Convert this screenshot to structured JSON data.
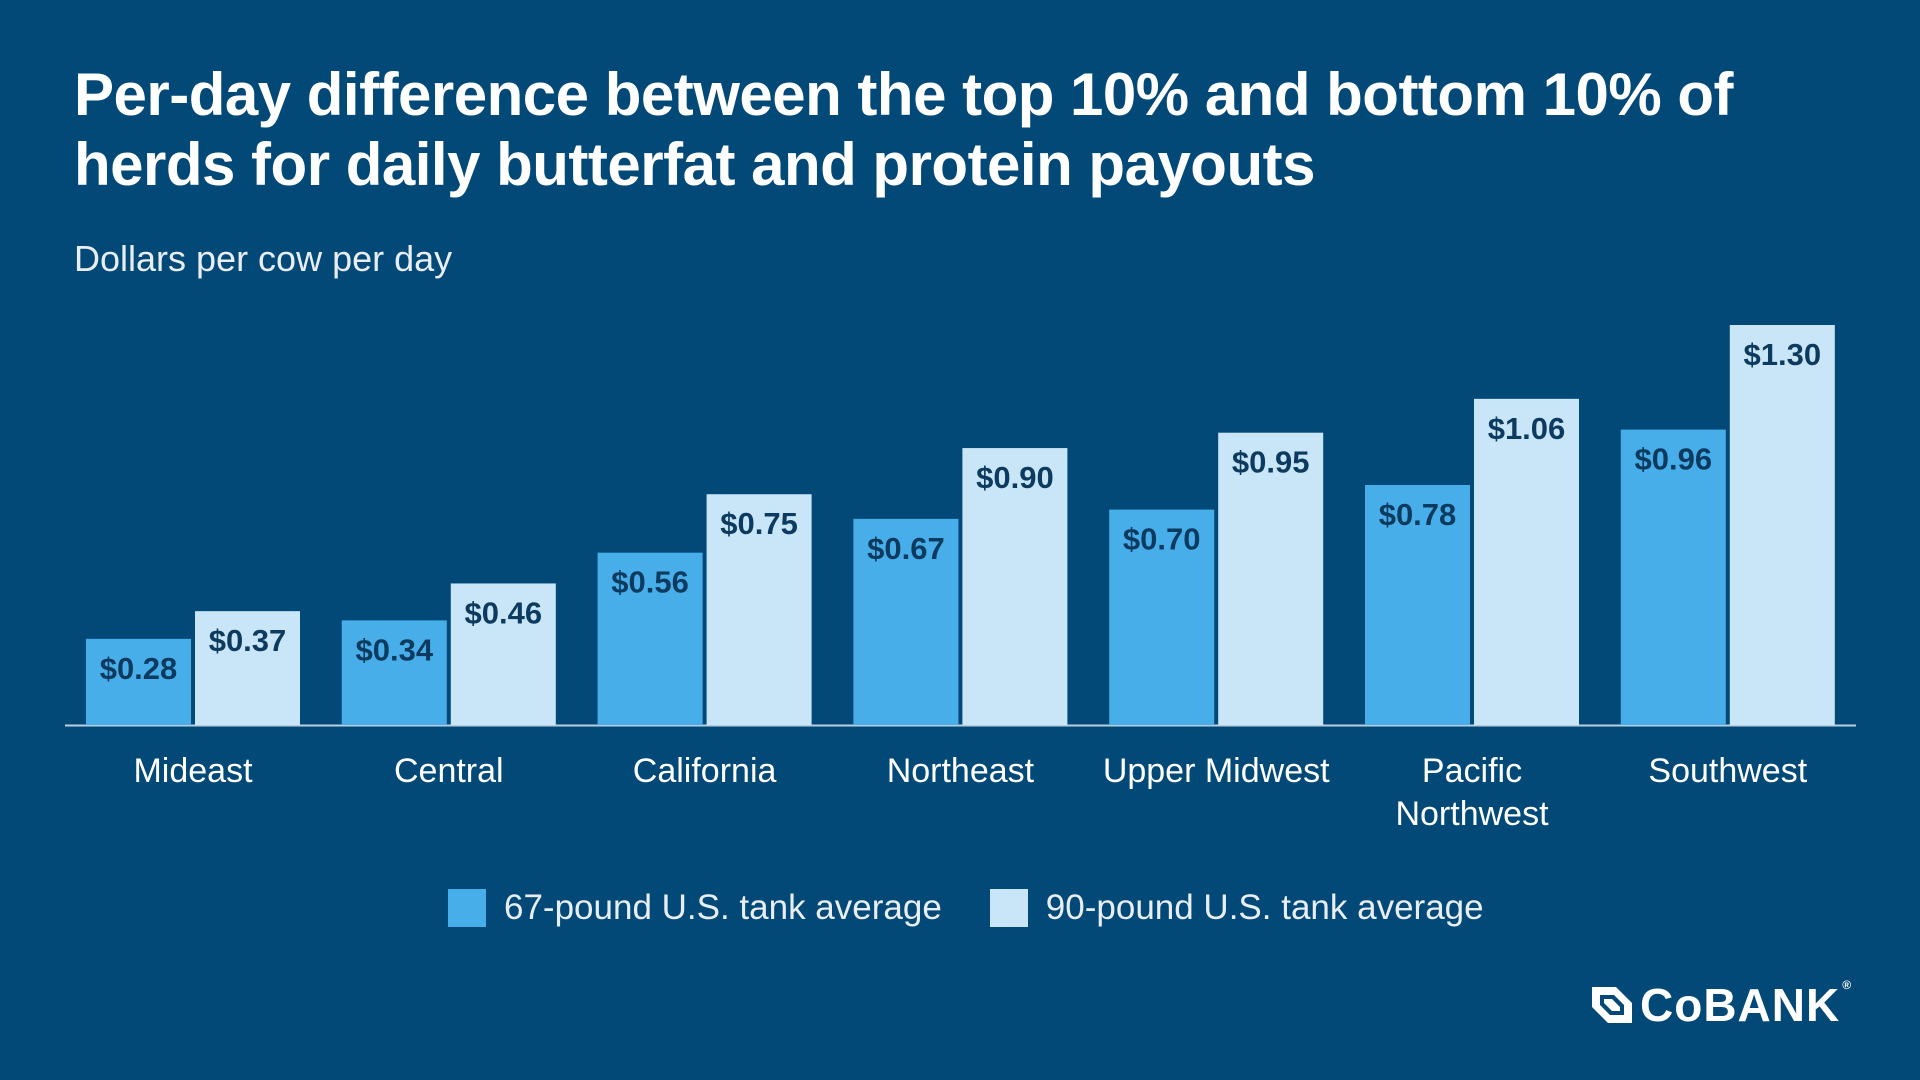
{
  "title": "Per-day difference between the top 10% and bottom 10% of herds for daily butterfat and protein payouts",
  "subtitle": "Dollars per cow per day",
  "brand": {
    "name": "CoBANK",
    "registered": "®",
    "logo_icon": "cobank-logo-icon"
  },
  "colors": {
    "background": "#034978",
    "series_67": "#47aee9",
    "series_90": "#c9e6f8",
    "value_label": "#0d3a5f",
    "axis": "#b9cfe0"
  },
  "chart_data": {
    "type": "bar",
    "categories": [
      "Mideast",
      "Central",
      "California",
      "Northeast",
      "Upper Midwest",
      "Pacific Northwest",
      "Southwest"
    ],
    "category_lines": [
      [
        "Mideast"
      ],
      [
        "Central"
      ],
      [
        "California"
      ],
      [
        "Northeast"
      ],
      [
        "Upper Midwest"
      ],
      [
        "Pacific",
        "Northwest"
      ],
      [
        "Southwest"
      ]
    ],
    "series": [
      {
        "name": "67-pound U.S. tank average",
        "values": [
          0.28,
          0.34,
          0.56,
          0.67,
          0.7,
          0.78,
          0.96
        ],
        "labels": [
          "$0.28",
          "$0.34",
          "$0.56",
          "$0.67",
          "$0.70",
          "$0.78",
          "$0.96"
        ]
      },
      {
        "name": "90-pound U.S. tank average",
        "values": [
          0.37,
          0.46,
          0.75,
          0.9,
          0.95,
          1.06,
          1.3
        ],
        "labels": [
          "$0.37",
          "$0.46",
          "$0.75",
          "$0.90",
          "$0.95",
          "$1.06",
          "$1.30"
        ]
      }
    ],
    "ylim": [
      0,
      1.3
    ],
    "grid": false,
    "legend_position": "bottom-center"
  }
}
